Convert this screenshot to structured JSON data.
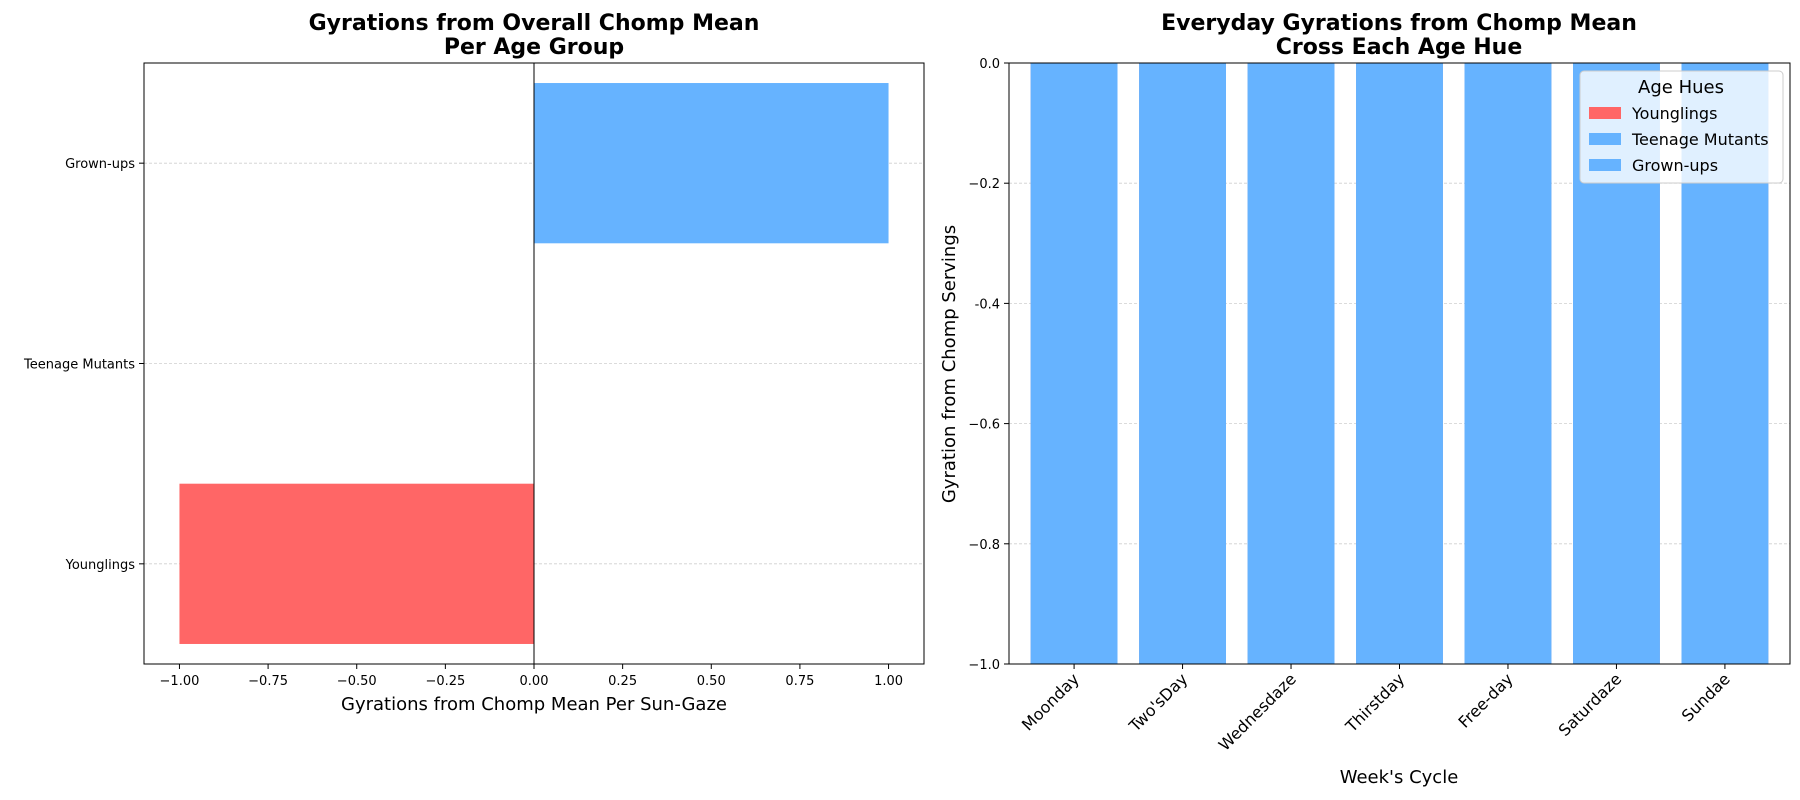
{
  "chart_data": [
    {
      "type": "bar",
      "orientation": "horizontal",
      "title": [
        "Gyrations from Overall Chomp Mean",
        "Per Age Group"
      ],
      "xlabel": "Gyrations from Chomp Mean Per Sun-Gaze",
      "ylabel": "",
      "categories": [
        "Younglings",
        "Teenage Mutants",
        "Grown-ups"
      ],
      "values": [
        -1.0,
        0.0,
        1.0
      ],
      "colors": [
        "#ff6666",
        "#66b3ff",
        "#66b3ff"
      ],
      "xlim": [
        -1.1,
        1.1
      ],
      "xticks": [
        -1.0,
        -0.75,
        -0.5,
        -0.25,
        0.0,
        0.25,
        0.5,
        0.75,
        1.0
      ],
      "xtick_labels": [
        "−1.00",
        "−0.75",
        "−0.50",
        "−0.25",
        "0.00",
        "0.25",
        "0.50",
        "0.75",
        "1.00"
      ],
      "grid": "horizontal-dashed",
      "zero_line": true
    },
    {
      "type": "bar",
      "title": [
        "Everyday Gyrations from Chomp Mean",
        "Cross Each Age Hue"
      ],
      "xlabel": "Week's Cycle",
      "ylabel": "Gyration from Chomp Servings",
      "categories": [
        "Moonday",
        "Two'sDay",
        "Wednesdaze",
        "Thirstday",
        "Free-day",
        "Saturdaze",
        "Sundae"
      ],
      "series": [
        {
          "name": "Younglings",
          "color": "#ff6666",
          "values": [
            -1.0,
            -1.0,
            -1.0,
            -1.0,
            -1.0,
            -1.0,
            -1.0
          ]
        },
        {
          "name": "Teenage Mutants",
          "color": "#66b3ff",
          "values": [
            -1.0,
            -1.0,
            -1.0,
            -1.0,
            -1.0,
            -1.0,
            -1.0
          ]
        },
        {
          "name": "Grown-ups",
          "color": "#66b3ff",
          "values": [
            -1.0,
            -1.0,
            -1.0,
            -1.0,
            -1.0,
            -1.0,
            -1.0
          ]
        }
      ],
      "ylim": [
        -1.0,
        0.0
      ],
      "yticks": [
        0.0,
        -0.2,
        -0.4,
        -0.6,
        -0.8,
        -1.0
      ],
      "ytick_labels": [
        "0.0",
        "−0.2",
        "-0.4",
        "−0.6",
        "−0.8",
        "−1.0"
      ],
      "grid": "horizontal-dashed",
      "legend": {
        "title": "Age Hues",
        "placement": "top-right"
      },
      "xtick_rotation": -45
    }
  ]
}
